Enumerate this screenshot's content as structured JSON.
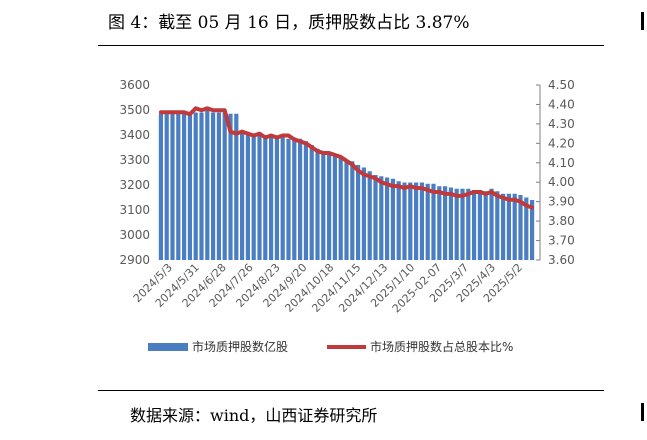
{
  "header": {
    "title": "图 4：截至 05 月 16 日，质押股数占比 3.87%"
  },
  "footer": {
    "source": "数据来源：wind，山西证券研究所"
  },
  "chart_data": {
    "type": "bar+line",
    "title": "图 4：截至 05 月 16 日，质押股数占比 3.87%",
    "xlabel": "",
    "ylabel": "",
    "x_tick_labels": [
      "2024/5/3",
      "2024/5/31",
      "2024/6/28",
      "2024/7/26",
      "2024/8/23",
      "2024/9/20",
      "2024/10/18",
      "2024/11/15",
      "2024/12/13",
      "2025/1/10",
      "2025-02-07",
      "2025/3/7",
      "2025/4/3",
      "2025/5/2"
    ],
    "left_axis": {
      "ylim": [
        2900,
        3600
      ],
      "ticks": [
        2900,
        3000,
        3100,
        3200,
        3300,
        3400,
        3500,
        3600
      ]
    },
    "right_axis": {
      "ylim": [
        3.6,
        4.5
      ],
      "ticks": [
        "3.60",
        "3.70",
        "3.80",
        "3.90",
        "4.00",
        "4.10",
        "4.20",
        "4.30",
        "4.40",
        "4.50"
      ]
    },
    "legend_position": "bottom",
    "grid": false,
    "series": [
      {
        "name": "市场质押股数亿股",
        "type": "bar",
        "axis": "left",
        "color": "#4A7EC2",
        "values": [
          3485,
          3485,
          3485,
          3485,
          3485,
          3485,
          3490,
          3490,
          3500,
          3490,
          3490,
          3490,
          3485,
          3485,
          3410,
          3405,
          3405,
          3400,
          3400,
          3395,
          3390,
          3390,
          3385,
          3390,
          3385,
          3375,
          3360,
          3345,
          3330,
          3325,
          3320,
          3315,
          3300,
          3295,
          3280,
          3270,
          3255,
          3240,
          3235,
          3230,
          3225,
          3215,
          3210,
          3210,
          3210,
          3210,
          3205,
          3205,
          3195,
          3195,
          3190,
          3185,
          3185,
          3185,
          3180,
          3180,
          3175,
          3185,
          3175,
          3165,
          3165,
          3165,
          3160,
          3150,
          3140
        ]
      },
      {
        "name": "市场质押股数占总股本比%",
        "type": "line",
        "axis": "right",
        "color": "#C0393B",
        "values": [
          4.36,
          4.36,
          4.36,
          4.36,
          4.36,
          4.35,
          4.38,
          4.37,
          4.38,
          4.37,
          4.37,
          4.37,
          4.26,
          4.25,
          4.26,
          4.25,
          4.24,
          4.25,
          4.23,
          4.24,
          4.23,
          4.24,
          4.24,
          4.22,
          4.21,
          4.2,
          4.18,
          4.16,
          4.15,
          4.15,
          4.14,
          4.13,
          4.11,
          4.09,
          4.06,
          4.04,
          4.03,
          4.02,
          4.0,
          3.99,
          3.98,
          3.98,
          3.97,
          3.98,
          3.97,
          3.97,
          3.96,
          3.95,
          3.95,
          3.94,
          3.94,
          3.93,
          3.93,
          3.94,
          3.95,
          3.95,
          3.94,
          3.95,
          3.93,
          3.92,
          3.91,
          3.91,
          3.9,
          3.88,
          3.87
        ]
      }
    ]
  }
}
